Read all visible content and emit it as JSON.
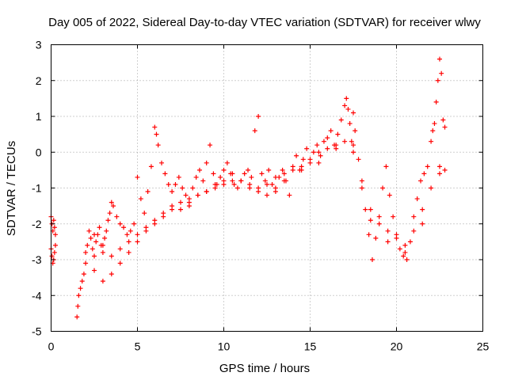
{
  "chart_data": {
    "type": "scatter",
    "title": "Day 005 of 2022, Sidereal Day-to-day VTEC variation (SDTVAR) for receiver wlwy",
    "xlabel": "GPS time / hours",
    "ylabel": "SDTVAR / TECUs",
    "xlim": [
      0,
      25
    ],
    "ylim": [
      -5,
      3
    ],
    "xticks": [
      0,
      5,
      10,
      15,
      20,
      25
    ],
    "yticks": [
      -5,
      -4,
      -3,
      -2,
      -1,
      0,
      1,
      2,
      3
    ],
    "grid": true,
    "marker": "+",
    "color": "#ff0000",
    "series": [
      {
        "name": "wlwy",
        "x": [
          0.0,
          0.05,
          0.1,
          0.15,
          0.2,
          0.25,
          0.0,
          0.05,
          0.1,
          0.15,
          0.2,
          0.25,
          1.5,
          1.55,
          1.6,
          1.7,
          1.8,
          1.9,
          2.0,
          2.1,
          2.2,
          2.3,
          2.4,
          2.5,
          2.6,
          2.7,
          2.8,
          2.9,
          3.0,
          3.1,
          3.2,
          3.3,
          3.4,
          3.5,
          3.6,
          3.8,
          4.0,
          4.2,
          4.4,
          4.6,
          4.8,
          5.0,
          5.2,
          5.4,
          5.6,
          5.8,
          6.0,
          6.1,
          6.2,
          6.4,
          6.6,
          6.8,
          7.0,
          7.2,
          7.4,
          7.6,
          7.8,
          8.0,
          8.2,
          8.4,
          8.6,
          8.8,
          9.0,
          9.2,
          9.4,
          9.6,
          9.8,
          10.0,
          10.2,
          10.4,
          10.6,
          10.8,
          11.0,
          11.2,
          11.4,
          11.6,
          11.8,
          12.0,
          12.2,
          12.4,
          12.6,
          12.8,
          13.0,
          13.2,
          13.4,
          13.6,
          13.8,
          14.0,
          14.2,
          14.4,
          14.6,
          14.8,
          15.0,
          15.2,
          15.4,
          15.6,
          15.8,
          16.0,
          16.2,
          16.4,
          16.6,
          16.8,
          17.0,
          17.1,
          17.2,
          17.3,
          17.4,
          17.5,
          17.6,
          17.8,
          18.0,
          18.2,
          18.4,
          18.6,
          18.8,
          19.0,
          19.2,
          19.4,
          19.6,
          19.8,
          20.0,
          20.2,
          20.4,
          20.6,
          20.8,
          21.0,
          21.2,
          21.4,
          21.6,
          21.8,
          22.0,
          22.1,
          22.2,
          22.3,
          22.4,
          22.5,
          22.6,
          22.7,
          22.8,
          2.0,
          2.5,
          3.0,
          3.5,
          4.0,
          4.5,
          5.0,
          5.5,
          6.0,
          6.5,
          7.0,
          7.5,
          8.0,
          8.5,
          9.0,
          9.5,
          10.0,
          10.5,
          11.0,
          11.5,
          12.0,
          12.5,
          13.0,
          13.5,
          14.0,
          14.5,
          15.0,
          15.5,
          16.0,
          16.5,
          17.0,
          17.5,
          18.0,
          18.5,
          19.0,
          19.5,
          20.0,
          20.5,
          21.0,
          21.5,
          22.0,
          22.5,
          22.8,
          2.5,
          3.0,
          3.5,
          4.0,
          4.5,
          5.0,
          5.5,
          6.0,
          6.5,
          7.0,
          7.5,
          8.0,
          8.5,
          9.0,
          9.5,
          10.0,
          10.5,
          11.0,
          11.5,
          12.0,
          12.5,
          13.0,
          13.5,
          14.5,
          15.5,
          16.5,
          17.5,
          18.5,
          19.5,
          20.5,
          21.5,
          22.5
        ],
        "y": [
          -1.8,
          -2.0,
          -2.2,
          -1.9,
          -2.1,
          -2.3,
          -2.7,
          -2.9,
          -3.1,
          -3.0,
          -2.8,
          -2.6,
          -4.6,
          -4.3,
          -4.0,
          -3.8,
          -3.6,
          -3.4,
          -3.1,
          -2.6,
          -2.2,
          -2.4,
          -2.7,
          -2.9,
          -2.5,
          -2.3,
          -2.1,
          -2.6,
          -2.8,
          -2.4,
          -2.2,
          -1.9,
          -1.7,
          -1.4,
          -1.5,
          -1.8,
          -2.0,
          -2.1,
          -2.3,
          -2.2,
          -2.0,
          -0.7,
          -1.3,
          -1.7,
          -1.1,
          -0.4,
          0.7,
          0.5,
          0.2,
          -0.3,
          -0.6,
          -0.9,
          -1.1,
          -0.9,
          -0.7,
          -1.0,
          -1.2,
          -1.5,
          -1.0,
          -0.7,
          -0.5,
          -0.8,
          -0.3,
          0.2,
          -0.6,
          -0.9,
          -0.7,
          -0.5,
          -0.3,
          -0.6,
          -0.9,
          -1.0,
          -0.8,
          -0.6,
          -0.5,
          -0.7,
          0.6,
          1.0,
          -0.6,
          -0.8,
          -0.5,
          -0.9,
          -1.1,
          -0.7,
          -0.5,
          -0.8,
          -1.2,
          -0.4,
          -0.1,
          -0.5,
          -0.2,
          0.1,
          -0.3,
          0.0,
          0.2,
          -0.1,
          0.3,
          0.4,
          0.6,
          0.2,
          0.5,
          0.9,
          1.3,
          1.5,
          1.2,
          0.8,
          0.3,
          1.1,
          0.6,
          -0.2,
          -1.0,
          -1.6,
          -2.3,
          -3.0,
          -2.4,
          -1.8,
          -1.0,
          -0.4,
          -1.2,
          -1.8,
          -2.3,
          -2.7,
          -2.9,
          -3.0,
          -2.5,
          -1.8,
          -1.3,
          -0.8,
          -0.6,
          -0.4,
          0.3,
          0.6,
          0.8,
          1.4,
          2.0,
          2.6,
          2.2,
          0.9,
          0.7,
          -2.8,
          -3.3,
          -3.6,
          -3.4,
          -3.1,
          -2.8,
          -2.5,
          -2.2,
          -2.0,
          -1.8,
          -1.6,
          -1.4,
          -1.3,
          -1.2,
          -1.1,
          -1.0,
          -0.9,
          -0.8,
          -0.8,
          -0.9,
          -1.0,
          -0.9,
          -0.7,
          -0.6,
          -0.5,
          -0.4,
          -0.2,
          0.0,
          0.1,
          0.2,
          0.3,
          0.0,
          -0.8,
          -1.6,
          -2.0,
          -2.2,
          -2.4,
          -2.6,
          -2.2,
          -1.6,
          -1.0,
          -0.6,
          -0.5,
          -2.3,
          -2.6,
          -2.9,
          -2.7,
          -2.5,
          -2.3,
          -2.1,
          -1.9,
          -1.7,
          -1.5,
          -1.6,
          -1.4,
          -1.2,
          -1.1,
          -0.9,
          -0.8,
          -0.6,
          -0.8,
          -1.0,
          -1.1,
          -1.2,
          -1.0,
          -0.8,
          -0.5,
          -0.3,
          0.1,
          0.2,
          -1.9,
          -2.5,
          -2.8,
          -2.0,
          -0.4
        ]
      }
    ]
  }
}
